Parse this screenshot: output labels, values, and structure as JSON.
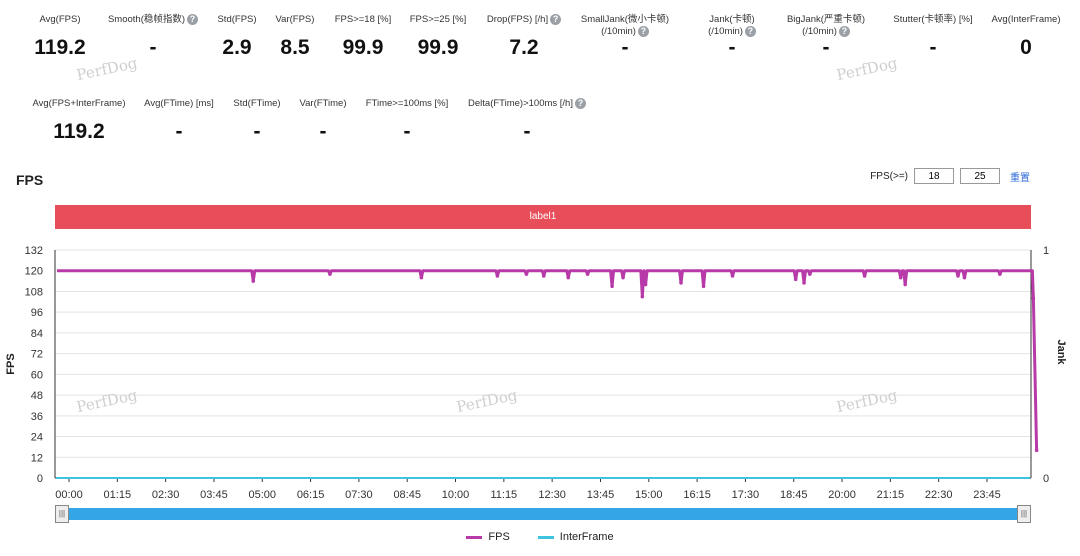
{
  "stats_row1": [
    {
      "label": "Avg(FPS)",
      "value": "119.2",
      "help": false
    },
    {
      "label": "Smooth(稳帧指数)",
      "value": "-",
      "help": true
    },
    {
      "label": "Std(FPS)",
      "value": "2.9",
      "help": false
    },
    {
      "label": "Var(FPS)",
      "value": "8.5",
      "help": false
    },
    {
      "label": "FPS>=18 [%]",
      "value": "99.9",
      "help": false
    },
    {
      "label": "FPS>=25 [%]",
      "value": "99.9",
      "help": false
    },
    {
      "label": "Drop(FPS) [/h]",
      "value": "7.2",
      "help": true
    },
    {
      "label": "SmallJank(微小卡顿)",
      "label2": "(/10min)",
      "value": "-",
      "help": true
    },
    {
      "label": "Jank(卡顿)",
      "label2": "(/10min)",
      "value": "-",
      "help": true
    },
    {
      "label": "BigJank(严重卡顿)",
      "label2": "(/10min)",
      "value": "-",
      "help": true
    },
    {
      "label": "Stutter(卡顿率) [%]",
      "value": "-",
      "help": false
    },
    {
      "label": "Avg(InterFrame)",
      "value": "0",
      "help": false
    }
  ],
  "stats_row2": [
    {
      "label": "Avg(FPS+InterFrame)",
      "value": "119.2",
      "help": false
    },
    {
      "label": "Avg(FTime) [ms]",
      "value": "-",
      "help": false
    },
    {
      "label": "Std(FTime)",
      "value": "-",
      "help": false
    },
    {
      "label": "Var(FTime)",
      "value": "-",
      "help": false
    },
    {
      "label": "FTime>=100ms [%]",
      "value": "-",
      "help": false
    },
    {
      "label": "Delta(FTime)>100ms [/h]",
      "value": "-",
      "help": true
    }
  ],
  "help_glyph": "?",
  "section_title": "FPS",
  "threshold": {
    "label": "FPS(>=)",
    "low": "18",
    "high": "25",
    "reset": "重置"
  },
  "label_bar": "label1",
  "watermark": "PerfDog",
  "legend": [
    {
      "name": "FPS",
      "color": "#b73aa8"
    },
    {
      "name": "InterFrame",
      "color": "#3fc4e0"
    }
  ],
  "slider_glyph": "|||",
  "colors": {
    "fps": "#b73aa8",
    "interframe": "#3fc4e0",
    "label_bar": "#e84e5a",
    "slider": "#34a6e8"
  },
  "chart_data": {
    "type": "line",
    "ylabel": "FPS",
    "y2label": "Jank",
    "ylim": [
      0,
      132
    ],
    "yticks": [
      0,
      12,
      24,
      36,
      48,
      60,
      72,
      84,
      96,
      108,
      120,
      132
    ],
    "y2lim": [
      0,
      1
    ],
    "y2ticks": [
      0,
      1
    ],
    "xticks": [
      "00:00",
      "01:15",
      "02:30",
      "03:45",
      "05:00",
      "06:15",
      "07:30",
      "08:45",
      "10:00",
      "11:15",
      "12:30",
      "13:45",
      "15:00",
      "16:15",
      "17:30",
      "18:45",
      "20:00",
      "21:15",
      "22:30",
      "23:45"
    ],
    "grid": "horizontal",
    "legend_position": "bottom-center",
    "series": [
      {
        "name": "FPS",
        "baseline": 120,
        "dips": [
          [
            "04:46",
            114
          ],
          [
            "06:45",
            118
          ],
          [
            "09:07",
            116
          ],
          [
            "11:05",
            117
          ],
          [
            "11:50",
            118
          ],
          [
            "12:17",
            117
          ],
          [
            "12:55",
            116
          ],
          [
            "13:25",
            118
          ],
          [
            "14:03",
            111
          ],
          [
            "14:20",
            116
          ],
          [
            "14:50",
            105
          ],
          [
            "14:55",
            112
          ],
          [
            "15:50",
            113
          ],
          [
            "16:25",
            111
          ],
          [
            "17:10",
            117
          ],
          [
            "18:48",
            115
          ],
          [
            "19:01",
            113
          ],
          [
            "19:10",
            118
          ],
          [
            "20:35",
            117
          ],
          [
            "21:31",
            116
          ],
          [
            "21:38",
            112
          ],
          [
            "23:00",
            117
          ],
          [
            "23:10",
            116
          ],
          [
            "24:05",
            118
          ],
          [
            "24:57",
            104
          ],
          [
            "25:02",
            16
          ]
        ]
      },
      {
        "name": "InterFrame",
        "values_constant": 0
      }
    ]
  }
}
